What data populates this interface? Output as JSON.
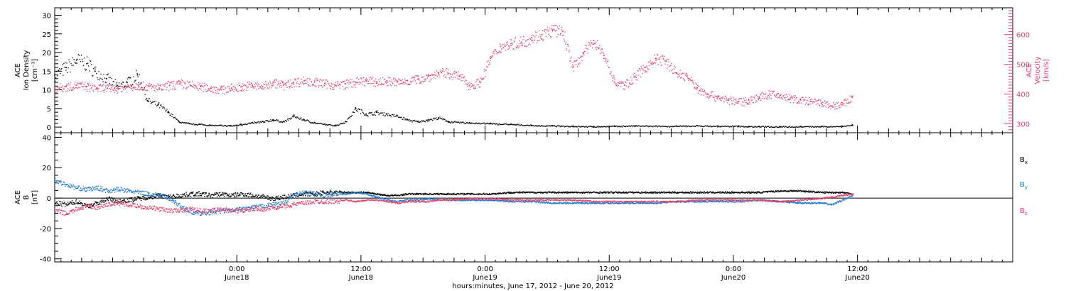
{
  "chart_data": [
    {
      "type": "scatter",
      "panel": "top",
      "left_axis": {
        "label_lines": [
          "ACE",
          "Ion Density",
          "[cm⁻³]"
        ],
        "range": [
          -1.5,
          32
        ],
        "ticks": [
          0,
          5,
          10,
          15,
          20,
          25,
          30
        ],
        "tick_labels": [
          "0",
          "5",
          "10",
          "15",
          "20",
          "25",
          "30"
        ],
        "color": "#000000"
      },
      "right_axis": {
        "label_lines": [
          "ACE",
          "Velocity",
          "[km/s]"
        ],
        "range": [
          270,
          690
        ],
        "ticks": [
          300,
          400,
          500,
          600
        ],
        "tick_labels": [
          "300",
          "400",
          "500",
          "600"
        ],
        "color": "#e8426b"
      },
      "series": [
        {
          "color": "#000000",
          "axis": "left",
          "x_hours": [
            -17.6,
            -16.5,
            -15.5,
            -14.5,
            -13.7,
            -12.6,
            -11.6,
            -10.6,
            -9.6,
            -8.6,
            -7.6,
            -6.6,
            -5.6,
            -4.6,
            -3.6,
            -2.6,
            -1.6,
            -0.6,
            0.4,
            1.5,
            2.5,
            3.5,
            4.5,
            5.5,
            6.5,
            7.5,
            8.5,
            9.5,
            10.5,
            11.5,
            12.5,
            13.5,
            14.5,
            15.5,
            16.5,
            17.5,
            18.5,
            19.5,
            20.5,
            22.5,
            24.5,
            26.5,
            28.5,
            30.5,
            32.5,
            34.5,
            36.5,
            38.5,
            40.5,
            42.5,
            44.5,
            46.5,
            48.5,
            49.5,
            50.5,
            52.5,
            54.5,
            56.5,
            58.5,
            59.5
          ],
          "y": [
            14,
            16,
            18,
            17,
            15,
            13,
            11,
            12,
            14,
            7,
            6,
            4,
            1.5,
            1,
            0.8,
            0.6,
            0.5,
            0.4,
            0.8,
            1.2,
            1.5,
            2,
            1.5,
            3,
            2,
            1.2,
            0.8,
            0.5,
            1.5,
            5,
            3.5,
            4,
            3.5,
            3,
            2,
            1.5,
            2,
            2.5,
            1.5,
            1.2,
            1,
            0.8,
            0.5,
            0.4,
            0.3,
            0.2,
            0.3,
            0.4,
            0.3,
            0.3,
            0.4,
            0.3,
            0.3,
            0.2,
            0.2,
            0.2,
            0.2,
            0.2,
            0.3,
            0.6
          ]
        },
        {
          "color": "#e8426b",
          "axis": "right",
          "x_hours": [
            -17.6,
            -16.5,
            -15.5,
            -14.5,
            -13.5,
            -12.5,
            -11.5,
            -10.5,
            -9.5,
            -8.5,
            -7.5,
            -6.5,
            -5.5,
            -4.5,
            -3.5,
            -2.5,
            -1.5,
            -0.5,
            0.5,
            1.5,
            2.5,
            3.5,
            4.5,
            5.5,
            6.5,
            7.5,
            8.5,
            9.5,
            10.5,
            11.5,
            12.5,
            13.5,
            14.5,
            15.5,
            16.5,
            17.5,
            18.5,
            19.5,
            20.5,
            21.5,
            22.5,
            23.5,
            24.5,
            25.5,
            26.5,
            27.5,
            28.5,
            29.5,
            30.5,
            31.5,
            32.5,
            33.5,
            34.5,
            35.5,
            36.5,
            37.5,
            38.5,
            39.5,
            40.5,
            41.5,
            42.5,
            43.5,
            44.5,
            45.5,
            46.5,
            47.5,
            48.5,
            49.5,
            50.5,
            51.5,
            52.5,
            53.5,
            54.5,
            55.5,
            56.5,
            57.5,
            58.5,
            59.5
          ],
          "y": [
            420,
            425,
            430,
            425,
            420,
            420,
            420,
            425,
            430,
            425,
            420,
            430,
            435,
            430,
            425,
            420,
            415,
            420,
            425,
            430,
            425,
            440,
            430,
            440,
            445,
            440,
            435,
            430,
            435,
            440,
            445,
            440,
            445,
            440,
            445,
            450,
            460,
            470,
            470,
            460,
            430,
            440,
            520,
            560,
            570,
            575,
            590,
            600,
            615,
            610,
            490,
            540,
            580,
            530,
            440,
            430,
            460,
            490,
            520,
            510,
            470,
            460,
            420,
            400,
            390,
            380,
            375,
            380,
            390,
            400,
            395,
            385,
            380,
            375,
            370,
            360,
            365,
            390
          ]
        }
      ]
    },
    {
      "type": "scatter",
      "panel": "bottom",
      "left_axis": {
        "label_lines": [
          "ACE",
          "B",
          "[nT]"
        ],
        "range": [
          -42,
          43
        ],
        "ticks": [
          -40,
          -20,
          0,
          20,
          40
        ],
        "tick_labels": [
          "-40",
          "-20",
          "0",
          "20",
          "40"
        ]
      },
      "zero_line": true,
      "series": [
        {
          "name": "B",
          "sub": "x",
          "color": "#000000",
          "x_hours": [
            -17.6,
            -16.5,
            -15.5,
            -14.5,
            -13.5,
            -12.5,
            -11.5,
            -10.5,
            -9.5,
            -8.5,
            -7.5,
            -6.5,
            -5.5,
            -4.5,
            -3.5,
            -2.5,
            -1.5,
            -0.5,
            0.5,
            1.5,
            2.5,
            3.5,
            4.5,
            5.5,
            6.5,
            7.5,
            8.5,
            9.5,
            10.5,
            11.5,
            12.5,
            13.5,
            14.5,
            15.5,
            16.5,
            17.5,
            18.5,
            19.5,
            20.5,
            22.5,
            24.5,
            26.5,
            28.5,
            30.5,
            32.5,
            34.5,
            36.5,
            38.5,
            40.5,
            42.5,
            44.5,
            46.5,
            48.5,
            50.5,
            52.5,
            54.5,
            56.5,
            58.5,
            59.5
          ],
          "y": [
            -3,
            -4,
            -2,
            -5,
            -3,
            0,
            -2,
            -1,
            0,
            1,
            2,
            1,
            2,
            3,
            3,
            2,
            3,
            2,
            3,
            2,
            1,
            0,
            1,
            2,
            3,
            3,
            4,
            4,
            4,
            4,
            4,
            3,
            2,
            2,
            3,
            3,
            3,
            3,
            3,
            3,
            3,
            4,
            4,
            4,
            4,
            4,
            4,
            4,
            4,
            4,
            4,
            4,
            4,
            4,
            5,
            5,
            4,
            4,
            3
          ]
        },
        {
          "name": "B",
          "sub": "y",
          "color": "#1f78d4",
          "x_hours": [
            -17.6,
            -16.5,
            -15.5,
            -14.5,
            -13.5,
            -12.5,
            -11.5,
            -10.5,
            -9.5,
            -8.5,
            -7.5,
            -6.5,
            -5.5,
            -4.5,
            -3.5,
            -2.5,
            -1.5,
            -0.5,
            0.5,
            1.5,
            2.5,
            3.5,
            4.5,
            5.5,
            6.5,
            7.5,
            8.5,
            9.5,
            10.5,
            11.5,
            12.5,
            13.5,
            14.5,
            15.5,
            16.5,
            17.5,
            18.5,
            19.5,
            20.5,
            22.5,
            24.5,
            26.5,
            28.5,
            30.5,
            32.5,
            34.5,
            36.5,
            38.5,
            40.5,
            42.5,
            44.5,
            46.5,
            48.5,
            50.5,
            52.5,
            54.5,
            56.5,
            57.5,
            58.5,
            59.5
          ],
          "y": [
            12,
            9,
            7,
            6,
            7,
            5,
            6,
            5,
            4,
            3,
            2,
            0,
            -5,
            -9,
            -10,
            -9,
            -8,
            -8,
            -7,
            -6,
            -5,
            -4,
            -3,
            2,
            4,
            3,
            2,
            3,
            3,
            4,
            3,
            1,
            -1,
            -2,
            -1,
            -1,
            0,
            -1,
            -1,
            -1,
            -1,
            -2,
            -2,
            -3,
            -3,
            -3,
            -3,
            -3,
            -3,
            -2,
            -2,
            -2,
            -2,
            -1,
            -2,
            -3,
            -3,
            -4,
            -1,
            2
          ]
        },
        {
          "name": "B",
          "sub": "z",
          "color": "#e8426b",
          "x_hours": [
            -17.6,
            -16.5,
            -15.5,
            -14.5,
            -13.5,
            -12.5,
            -11.5,
            -10.5,
            -9.5,
            -8.5,
            -7.5,
            -6.5,
            -5.5,
            -4.5,
            -3.5,
            -2.5,
            -1.5,
            -0.5,
            0.5,
            1.5,
            2.5,
            3.5,
            4.5,
            5.5,
            6.5,
            7.5,
            8.5,
            9.5,
            10.5,
            11.5,
            12.5,
            13.5,
            14.5,
            15.5,
            16.5,
            17.5,
            18.5,
            19.5,
            20.5,
            22.5,
            24.5,
            26.5,
            28.5,
            30.5,
            32.5,
            34.5,
            36.5,
            38.5,
            40.5,
            42.5,
            44.5,
            46.5,
            48.5,
            50.5,
            52.5,
            54.5,
            56.5,
            58.5,
            59.5
          ],
          "y": [
            -8,
            -10,
            -7,
            -5,
            -6,
            -4,
            -3,
            -4,
            -5,
            -6,
            -7,
            -8,
            -8,
            -7,
            -8,
            -8,
            -7,
            -8,
            -8,
            -7,
            -7,
            -6,
            -5,
            -4,
            -3,
            -2,
            -2,
            -2,
            -1,
            -2,
            -1,
            -1,
            -2,
            -3,
            -2,
            -2,
            -2,
            -1,
            -1,
            0,
            0,
            -1,
            -1,
            -1,
            -1,
            -2,
            -2,
            -2,
            -2,
            -2,
            -1,
            -1,
            -1,
            -1,
            -2,
            -1,
            0,
            2,
            3
          ]
        }
      ]
    }
  ],
  "x_axis": {
    "range_hours": [
      -17.6,
      75
    ],
    "major_ticks_hours": [
      0,
      12,
      24,
      36,
      48,
      60
    ],
    "tick_labels_time": [
      "0:00",
      "12:00",
      "0:00",
      "12:00",
      "0:00",
      "12:00"
    ],
    "tick_labels_date": [
      "June18",
      "June18",
      "June19",
      "June19",
      "June20",
      "June20"
    ],
    "title": "hours:minutes, June 17, 2012 - June 20, 2012"
  }
}
